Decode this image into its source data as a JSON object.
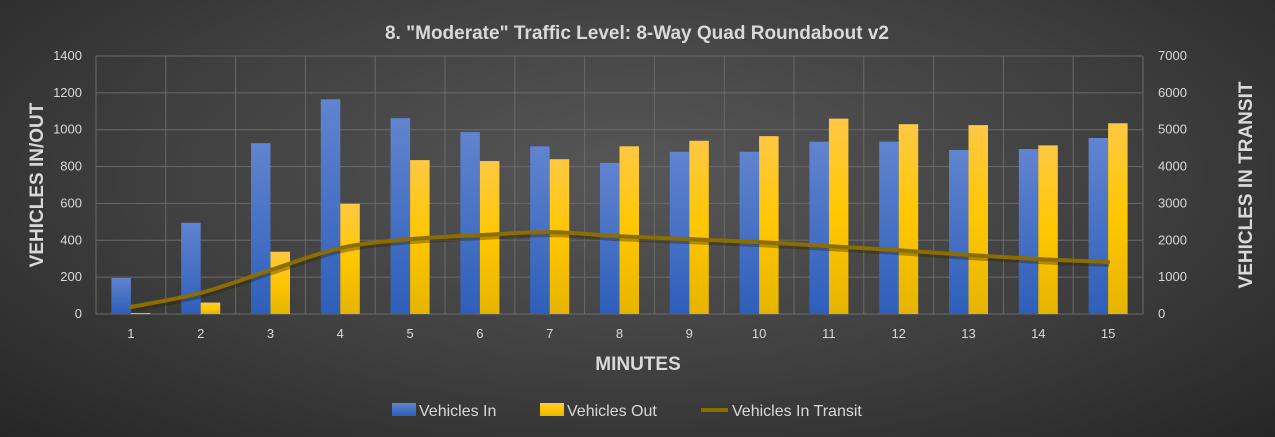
{
  "chart_data": {
    "type": "bar",
    "title": "8. \"Moderate\" Traffic Level: 8-Way Quad Roundabout v2",
    "xlabel": "MINUTES",
    "ylabel": "VEHICLES IN/OUT",
    "y2label": "VEHICLES IN TRANSIT",
    "ylim": [
      0,
      1400
    ],
    "y2lim": [
      0,
      7000
    ],
    "yticks": [
      "0",
      "200",
      "400",
      "600",
      "800",
      "1000",
      "1200",
      "1400"
    ],
    "y2ticks": [
      "0",
      "1000",
      "2000",
      "3000",
      "4000",
      "5000",
      "6000",
      "7000"
    ],
    "categories": [
      "1",
      "2",
      "3",
      "4",
      "5",
      "6",
      "7",
      "8",
      "9",
      "10",
      "11",
      "12",
      "13",
      "14",
      "15"
    ],
    "grid": true,
    "legend_position": "bottom",
    "series": [
      {
        "name": "Vehicles In",
        "type": "bar",
        "axis": "left",
        "color": "#4472c4",
        "values": [
          195,
          495,
          927,
          1165,
          1063,
          987,
          910,
          820,
          880,
          880,
          935,
          935,
          890,
          895,
          955
        ]
      },
      {
        "name": "Vehicles Out",
        "type": "bar",
        "axis": "left",
        "color": "#ffc000",
        "values": [
          5,
          62,
          338,
          598,
          835,
          830,
          840,
          910,
          940,
          965,
          1060,
          1030,
          1025,
          915,
          1035
        ]
      },
      {
        "name": "Vehicles In Transit",
        "type": "line",
        "axis": "right",
        "color": "#8c6d00",
        "values": [
          190,
          570,
          1190,
          1790,
          2030,
          2140,
          2220,
          2110,
          2030,
          1950,
          1840,
          1730,
          1600,
          1490,
          1410
        ]
      }
    ]
  }
}
